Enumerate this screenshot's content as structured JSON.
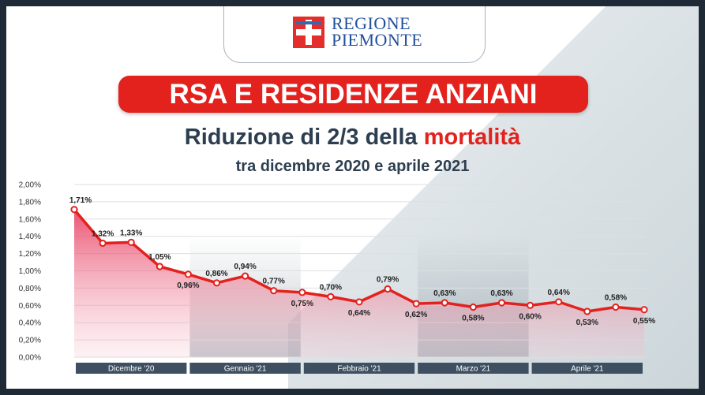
{
  "logo": {
    "line1": "REGIONE",
    "line2": "PIEMONTE"
  },
  "banner": "RSA E RESIDENZE ANZIANI",
  "title": {
    "prefix": "Riduzione di 2/3 della ",
    "highlight": "mortalità"
  },
  "subtitle": "tra dicembre 2020 e aprile 2021",
  "colors": {
    "accent": "#e3211d",
    "navy": "#2c3e50",
    "brand_blue": "#1f4f9b",
    "month_bar": "#3d4f60"
  },
  "chart_data": {
    "type": "area",
    "ylim": [
      0,
      2.0
    ],
    "yticks": [
      "0,00%",
      "0,20%",
      "0,40%",
      "0,60%",
      "0,80%",
      "1,00%",
      "1,20%",
      "1,40%",
      "1,60%",
      "1,80%",
      "2,00%"
    ],
    "values": [
      1.71,
      1.32,
      1.33,
      1.05,
      0.96,
      0.86,
      0.94,
      0.77,
      0.75,
      0.7,
      0.64,
      0.79,
      0.62,
      0.63,
      0.58,
      0.63,
      0.6,
      0.64,
      0.53,
      0.58,
      0.55
    ],
    "labels": [
      "1,71%",
      "1,32%",
      "1,33%",
      "1,05%",
      "0,96%",
      "0,86%",
      "0,94%",
      "0,77%",
      "0,75%",
      "0,70%",
      "0,64%",
      "0,79%",
      "0,62%",
      "0,63%",
      "0,58%",
      "0,63%",
      "0,60%",
      "0,64%",
      "0,53%",
      "0,58%",
      "0,55%"
    ],
    "label_pos": [
      "above",
      "above",
      "above",
      "above",
      "below",
      "above",
      "above",
      "above",
      "below",
      "above",
      "below",
      "above",
      "below",
      "above",
      "below",
      "above",
      "below",
      "above",
      "below",
      "above",
      "below"
    ],
    "months": [
      "Dicembre '20",
      "Gennaio '21",
      "Febbraio '21",
      "Marzo '21",
      "Aprile '21"
    ],
    "grid": true
  }
}
